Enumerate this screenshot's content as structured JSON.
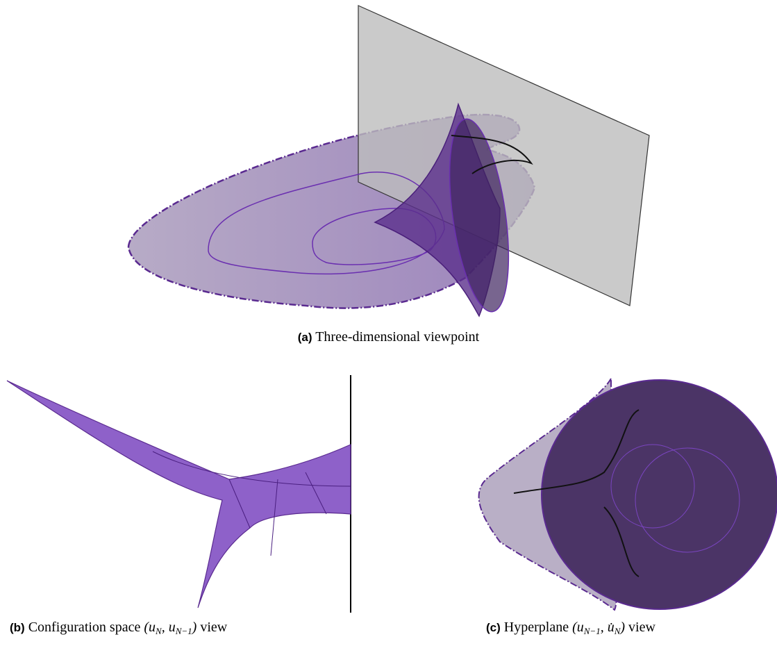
{
  "captions": [
    {
      "label": "(a)",
      "text": "Three-dimensional viewpoint"
    },
    {
      "label": "(b)",
      "text": "Configuration space",
      "math": [
        {
          "text": "(u"
        },
        {
          "sub": "N"
        },
        {
          "text": ", u"
        },
        {
          "sub": "N−1"
        },
        {
          "text": ")"
        }
      ],
      "suffix": "view"
    },
    {
      "label": "(c)",
      "text": "Hyperplane",
      "math": [
        {
          "text": "(u"
        },
        {
          "sub": "N−1"
        },
        {
          "text": ", u̇"
        },
        {
          "sub": "N"
        },
        {
          "text": ")"
        }
      ],
      "suffix": "view"
    }
  ]
}
